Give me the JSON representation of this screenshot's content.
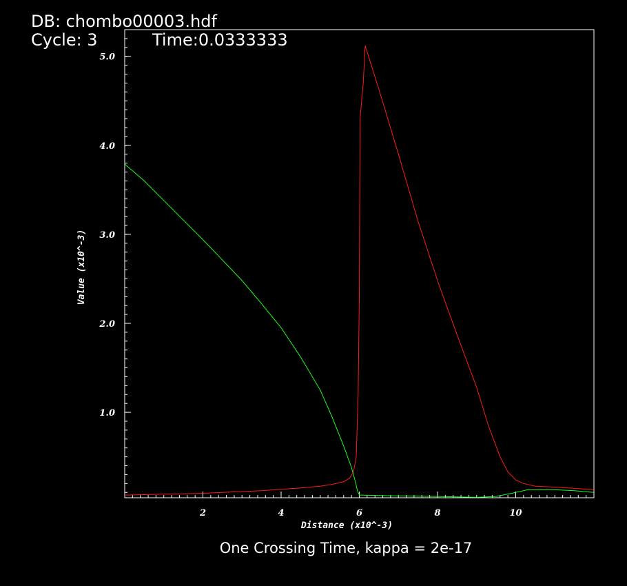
{
  "header": {
    "db_label": "DB: chombo00003.hdf",
    "cycle_label": "Cycle: 3",
    "time_label": "Time:0.0333333"
  },
  "caption": "One Crossing Time, kappa = 2e-17",
  "colors": {
    "red_series": "#ff1a1a",
    "green_series": "#1aff1a",
    "frame": "#ffffff",
    "background": "#000000"
  },
  "chart_data": {
    "type": "line",
    "xlabel": "Distance (x10^-3)",
    "ylabel": "Value (x10^-3)",
    "xlim": [
      0,
      12
    ],
    "ylim": [
      0.04,
      5.3
    ],
    "x_ticks": [
      {
        "value": 2,
        "label": "2"
      },
      {
        "value": 4,
        "label": "4"
      },
      {
        "value": 6,
        "label": "6"
      },
      {
        "value": 8,
        "label": "8"
      },
      {
        "value": 10,
        "label": "10"
      }
    ],
    "y_ticks": [
      {
        "value": 1.0,
        "label": "1.0"
      },
      {
        "value": 2.0,
        "label": "2.0"
      },
      {
        "value": 3.0,
        "label": "3.0"
      },
      {
        "value": 4.0,
        "label": "4.0"
      },
      {
        "value": 5.0,
        "label": "5.0"
      }
    ],
    "grid": false,
    "series": [
      {
        "color": "#ff1a1a",
        "x": [
          0,
          0.5,
          1,
          1.5,
          2,
          2.5,
          3,
          3.5,
          4,
          4.5,
          5,
          5.3,
          5.6,
          5.75,
          5.85,
          5.92,
          5.97,
          6.0,
          6.02,
          6.05,
          6.1,
          6.15,
          6.5,
          7.0,
          7.5,
          8.0,
          8.5,
          9.0,
          9.3,
          9.6,
          9.8,
          10.0,
          10.2,
          10.5,
          11.0,
          11.5,
          12.0
        ],
        "y": [
          0.07,
          0.075,
          0.08,
          0.085,
          0.09,
          0.1,
          0.11,
          0.12,
          0.135,
          0.15,
          0.17,
          0.19,
          0.22,
          0.26,
          0.33,
          0.5,
          1.2,
          2.3,
          4.3,
          4.45,
          4.7,
          5.12,
          4.63,
          3.9,
          3.15,
          2.48,
          1.87,
          1.28,
          0.85,
          0.5,
          0.33,
          0.24,
          0.2,
          0.17,
          0.16,
          0.145,
          0.13
        ]
      },
      {
        "color": "#1aff1a",
        "x": [
          0,
          0.5,
          1,
          1.5,
          2,
          2.5,
          3,
          3.5,
          4,
          4.5,
          5,
          5.3,
          5.6,
          5.8,
          5.9,
          5.95,
          6.0,
          6.05,
          6.5,
          7.0,
          8.0,
          8.5,
          9.0,
          9.5,
          10.0,
          10.3,
          10.6,
          11.0,
          11.5,
          12.0
        ],
        "y": [
          3.79,
          3.6,
          3.38,
          3.16,
          2.94,
          2.71,
          2.48,
          2.22,
          1.95,
          1.62,
          1.25,
          0.95,
          0.62,
          0.38,
          0.22,
          0.12,
          0.07,
          0.07,
          0.065,
          0.06,
          0.055,
          0.05,
          0.045,
          0.055,
          0.1,
          0.13,
          0.13,
          0.13,
          0.12,
          0.1
        ]
      }
    ]
  }
}
